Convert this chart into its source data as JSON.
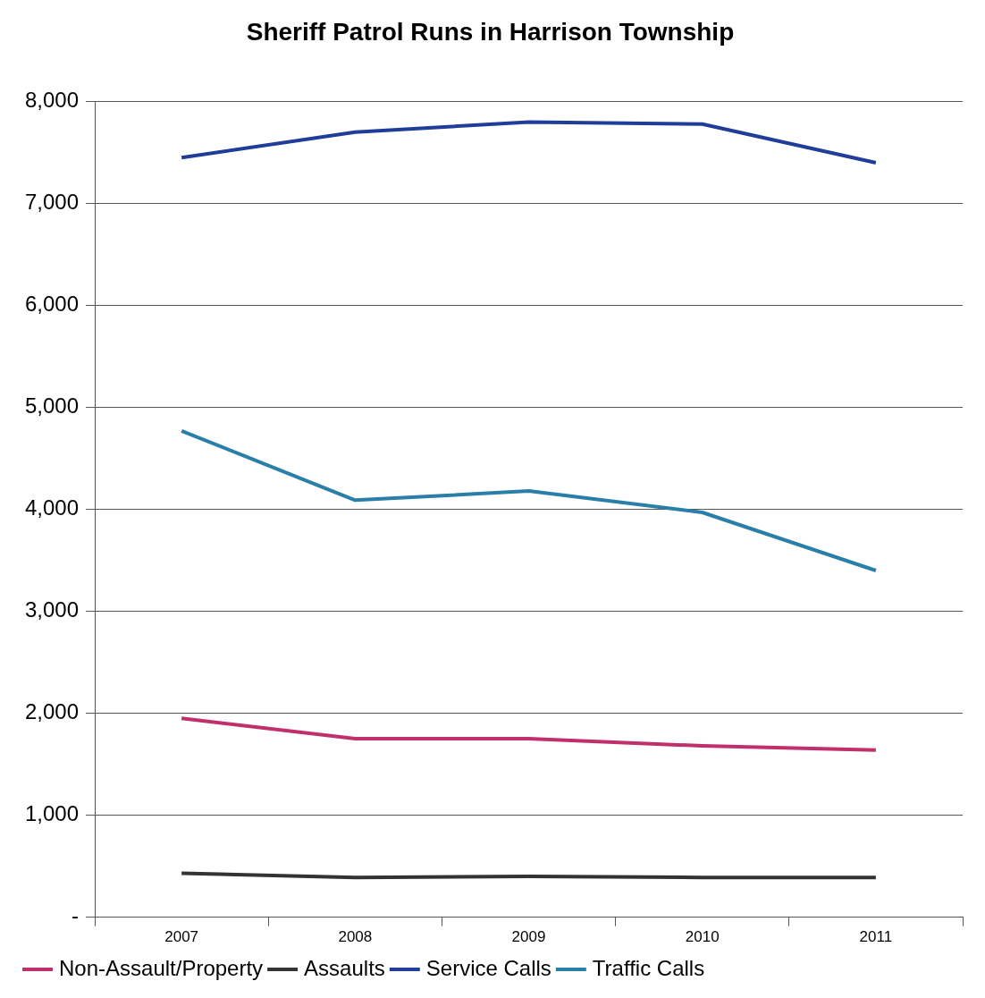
{
  "chart_data": {
    "type": "line",
    "title": "Sheriff Patrol Runs in Harrison Township",
    "categories": [
      "2007",
      "2008",
      "2009",
      "2010",
      "2011"
    ],
    "series": [
      {
        "name": "Non-Assault/Property",
        "color": "#c0306a",
        "values": [
          1950,
          1750,
          1750,
          1680,
          1640
        ]
      },
      {
        "name": "Assaults",
        "color": "#333333",
        "values": [
          430,
          390,
          400,
          390,
          390
        ]
      },
      {
        "name": "Service Calls",
        "color": "#1f3d99",
        "values": [
          7450,
          7700,
          7800,
          7780,
          7400
        ]
      },
      {
        "name": "Traffic Calls",
        "color": "#2a7fa8",
        "values": [
          4770,
          4090,
          4180,
          3970,
          3400
        ]
      }
    ],
    "ylim": [
      0,
      8000
    ],
    "yticks": [
      {
        "value": 0,
        "label": "-"
      },
      {
        "value": 1000,
        "label": "1,000"
      },
      {
        "value": 2000,
        "label": "2,000"
      },
      {
        "value": 3000,
        "label": "3,000"
      },
      {
        "value": 4000,
        "label": "4,000"
      },
      {
        "value": 5000,
        "label": "5,000"
      },
      {
        "value": 6000,
        "label": "6,000"
      },
      {
        "value": 7000,
        "label": "7,000"
      },
      {
        "value": 8000,
        "label": "8,000"
      }
    ],
    "grid": "y",
    "legend": "bottom",
    "marker": "none",
    "line_style": "solid"
  }
}
